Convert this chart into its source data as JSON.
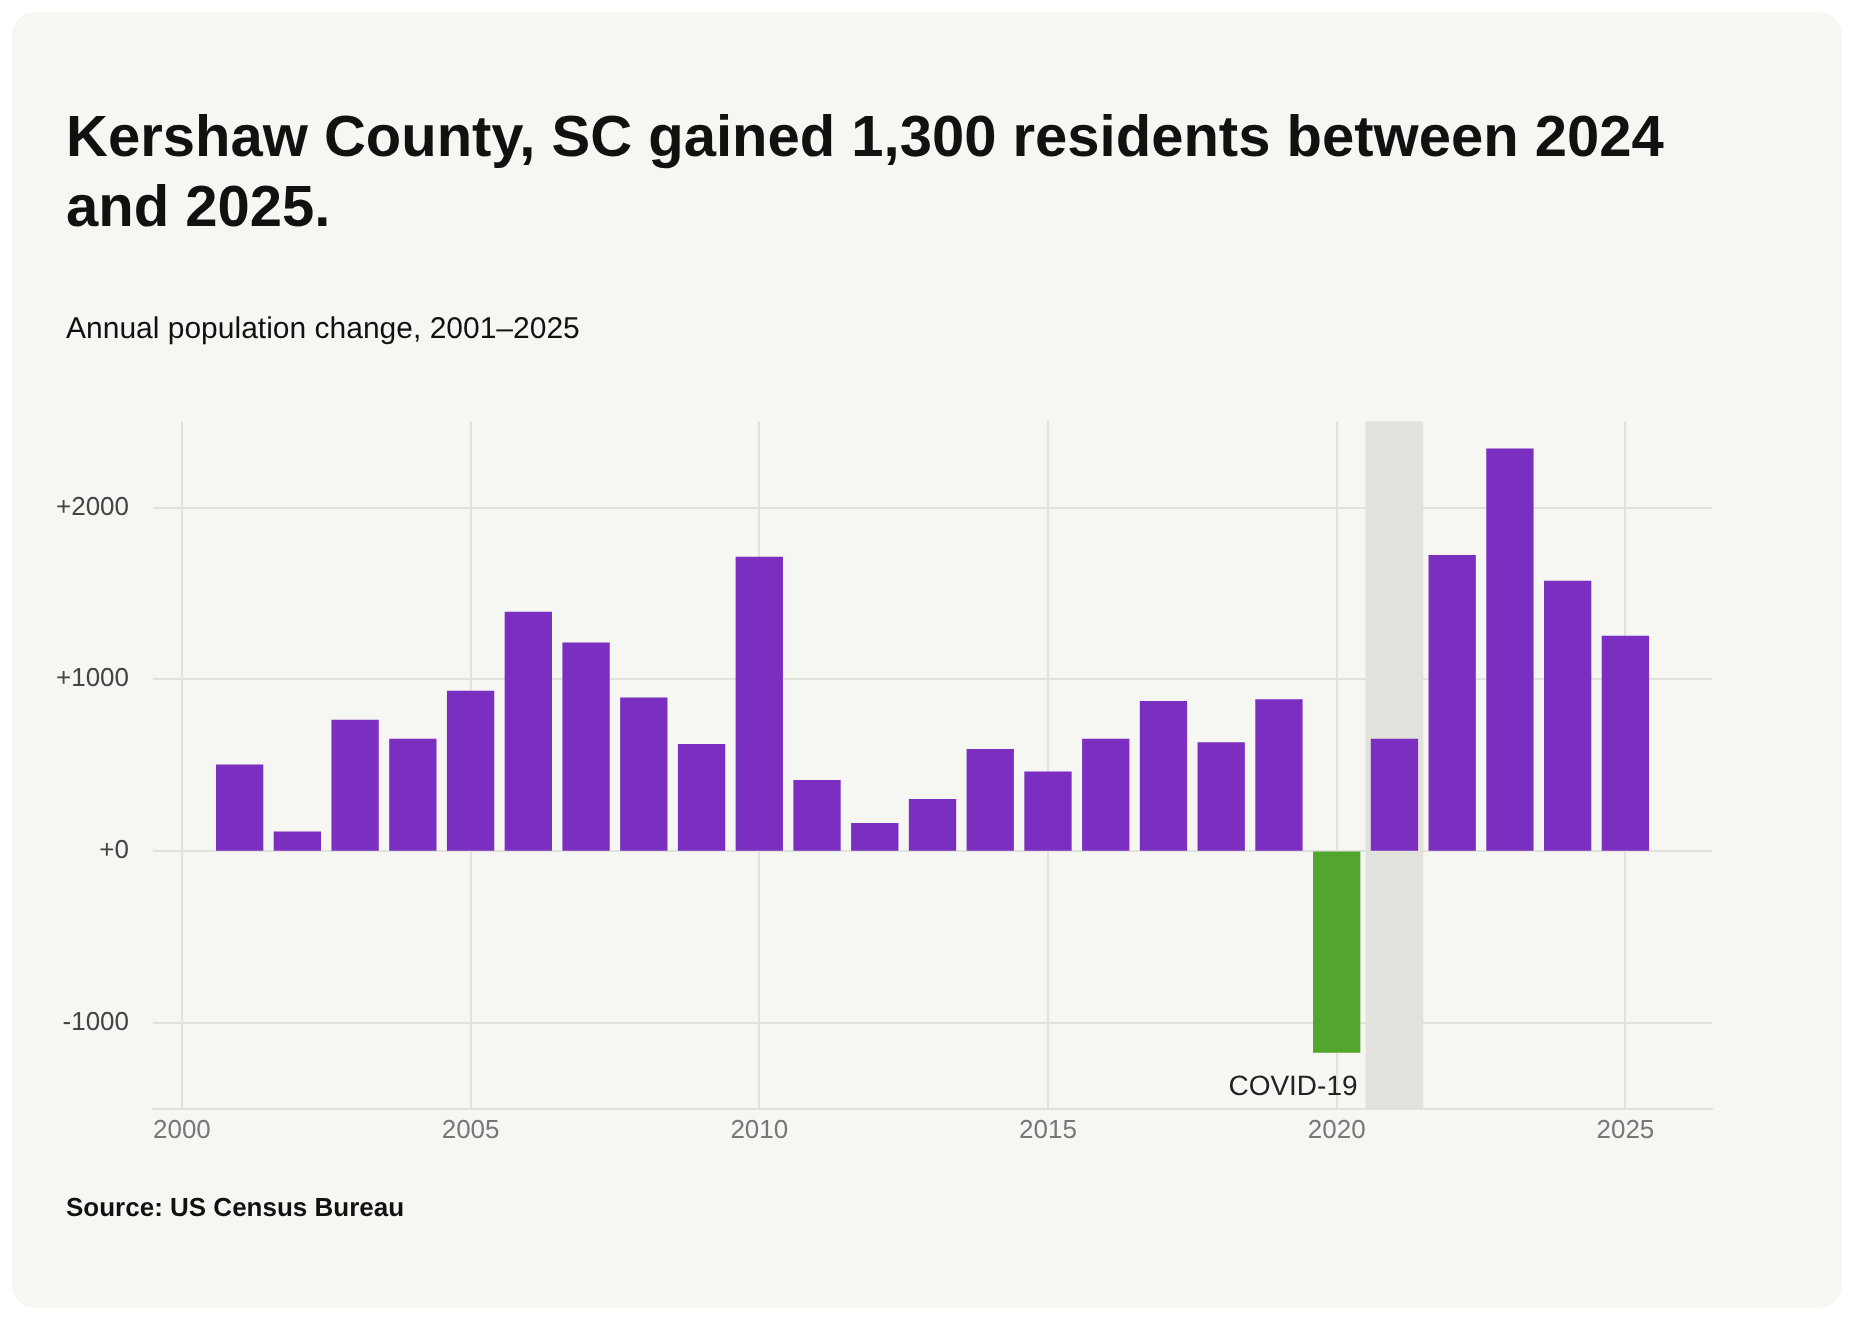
{
  "chart_data": {
    "type": "bar",
    "title": "Kershaw County, SC gained 1,300 residents between 2024 and 2025.",
    "subtitle": "Annual population change, 2001–2025",
    "x": [
      2001,
      2002,
      2003,
      2004,
      2005,
      2006,
      2007,
      2008,
      2009,
      2010,
      2011,
      2012,
      2013,
      2014,
      2015,
      2016,
      2017,
      2018,
      2019,
      2020,
      2021,
      2022,
      2023,
      2024,
      2025
    ],
    "values": [
      500,
      110,
      760,
      650,
      930,
      1390,
      1210,
      890,
      620,
      1710,
      410,
      160,
      300,
      590,
      460,
      650,
      870,
      630,
      880,
      -1170,
      650,
      1720,
      2340,
      1570,
      1250
    ],
    "colors": [
      "#7b2fc0",
      "#7b2fc0",
      "#7b2fc0",
      "#7b2fc0",
      "#7b2fc0",
      "#7b2fc0",
      "#7b2fc0",
      "#7b2fc0",
      "#7b2fc0",
      "#7b2fc0",
      "#7b2fc0",
      "#7b2fc0",
      "#7b2fc0",
      "#7b2fc0",
      "#7b2fc0",
      "#7b2fc0",
      "#7b2fc0",
      "#7b2fc0",
      "#7b2fc0",
      "#52a62d",
      "#7b2fc0",
      "#7b2fc0",
      "#7b2fc0",
      "#7b2fc0",
      "#7b2fc0"
    ],
    "xlim": [
      1999.5,
      2026.5
    ],
    "xticks": [
      2000,
      2005,
      2010,
      2015,
      2020,
      2025
    ],
    "ylim": [
      -1500,
      2500
    ],
    "yticks": [
      {
        "value": -1000,
        "label": "-1000"
      },
      {
        "value": 0,
        "label": "+0"
      },
      {
        "value": 1000,
        "label": "+1000"
      },
      {
        "value": 2000,
        "label": "+2000"
      }
    ],
    "bands": [
      {
        "axis": "x",
        "from": 2020.5,
        "to": 2021.5,
        "label": "COVID-19",
        "color": "#e2e2dc"
      }
    ],
    "grid": true,
    "annotations": [
      "Source: US Census Bureau"
    ]
  }
}
